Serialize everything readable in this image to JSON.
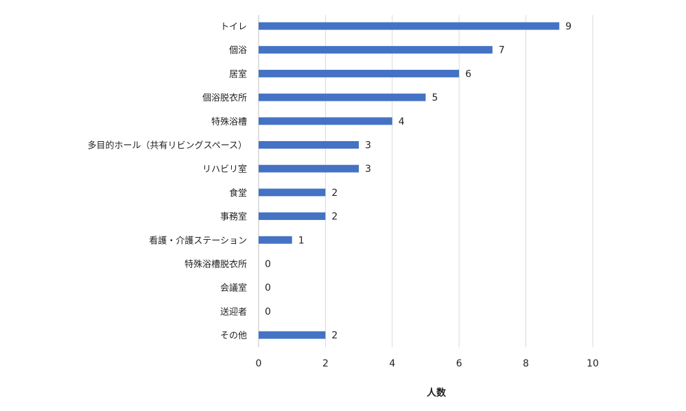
{
  "chart_data": {
    "type": "bar",
    "orientation": "horizontal",
    "categories": [
      "トイレ",
      "個浴",
      "居室",
      "個浴脱衣所",
      "特殊浴槽",
      "多目的ホール（共有リビングスペース）",
      "リハビリ室",
      "食堂",
      "事務室",
      "看護・介護ステーション",
      "特殊浴槽脱衣所",
      "会議室",
      "送迎者",
      "その他"
    ],
    "values": [
      9,
      7,
      6,
      5,
      4,
      3,
      3,
      2,
      2,
      1,
      0,
      0,
      0,
      2
    ],
    "xlabel": "人数",
    "xlim": [
      0,
      10
    ],
    "xticks": [
      0,
      2,
      4,
      6,
      8,
      10
    ],
    "grid": "vertical",
    "bar_color": "#4472c4",
    "data_labels": true,
    "legend": "none"
  }
}
